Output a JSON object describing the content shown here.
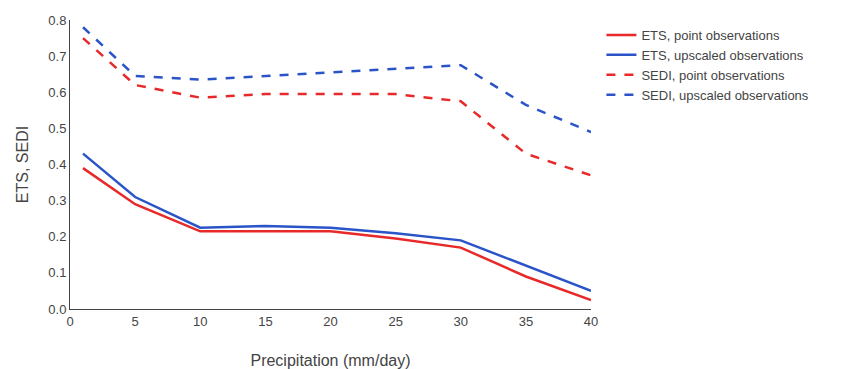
{
  "chart_data": {
    "type": "line",
    "xlabel": "Precipitation (mm/day)",
    "ylabel": "ETS, SEDI",
    "x": [
      1,
      5,
      10,
      15,
      20,
      25,
      30,
      35,
      40
    ],
    "series": [
      {
        "name": "ETS, point observations",
        "color": "#e8292a",
        "line_style": "solid",
        "values": [
          0.39,
          0.29,
          0.215,
          0.215,
          0.215,
          0.195,
          0.17,
          0.09,
          0.025
        ]
      },
      {
        "name": "ETS, upscaled observations",
        "color": "#2a54c8",
        "line_style": "solid",
        "values": [
          0.43,
          0.31,
          0.225,
          0.23,
          0.225,
          0.21,
          0.19,
          0.12,
          0.05
        ]
      },
      {
        "name": "SEDI, point observations",
        "color": "#e8292a",
        "line_style": "dashed",
        "values": [
          0.75,
          0.62,
          0.585,
          0.595,
          0.595,
          0.595,
          0.575,
          0.43,
          0.37
        ]
      },
      {
        "name": "SEDI, upscaled observations",
        "color": "#2a54c8",
        "line_style": "dashed",
        "values": [
          0.78,
          0.645,
          0.635,
          0.645,
          0.655,
          0.665,
          0.675,
          0.565,
          0.49
        ]
      }
    ],
    "xlim": [
      0,
      40
    ],
    "ylim": [
      0,
      0.8
    ],
    "xticks": [
      0,
      5,
      10,
      15,
      20,
      25,
      30,
      35,
      40
    ],
    "yticks": [
      {
        "value": 0,
        "label": "0.0"
      },
      0.1,
      0.2,
      0.3,
      0.4,
      0.5,
      0.6,
      0.7,
      0.8
    ],
    "grid": false,
    "legend": "right"
  }
}
